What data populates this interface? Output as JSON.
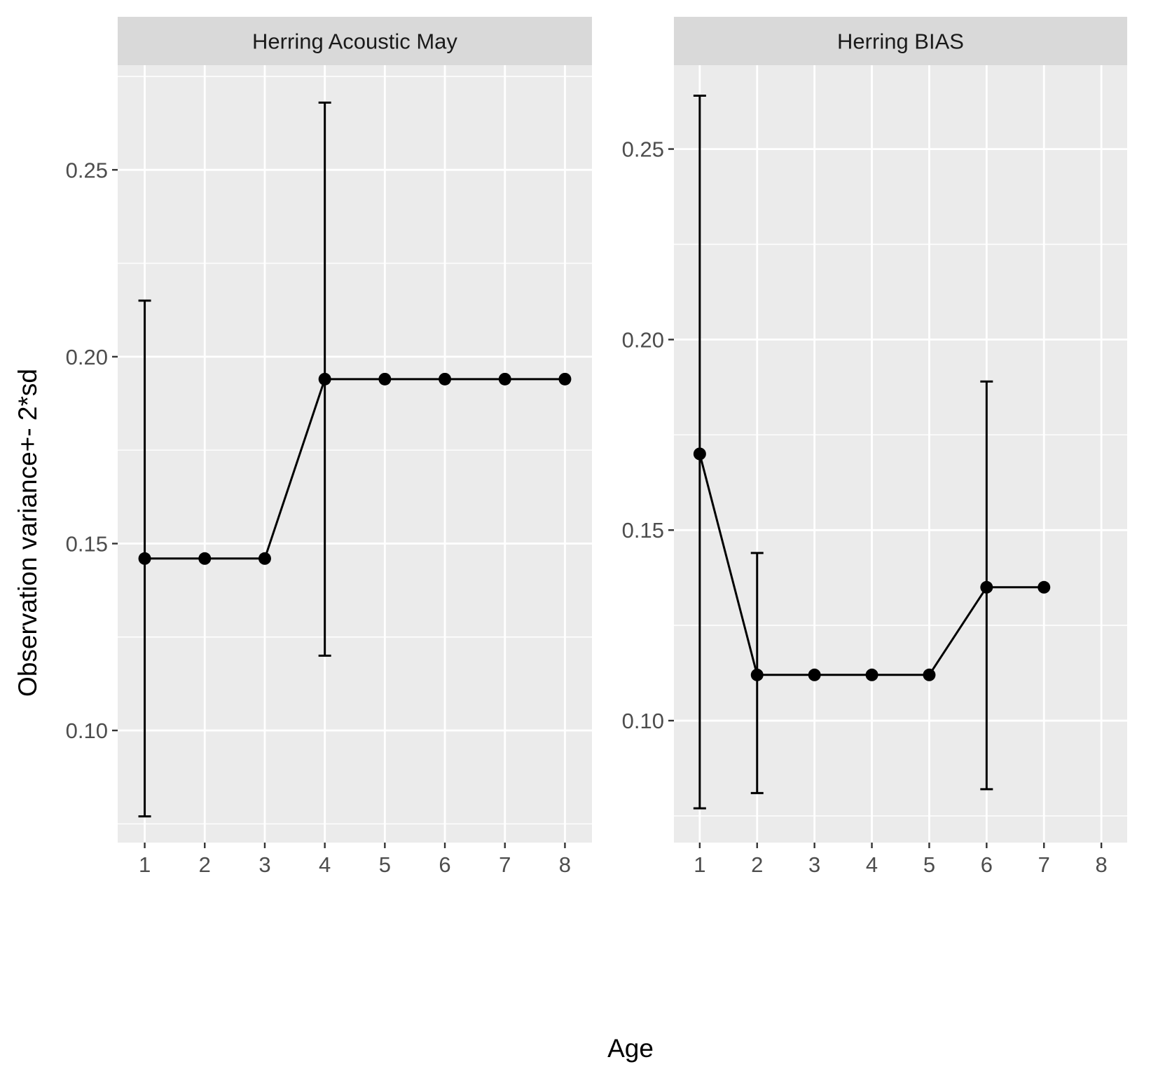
{
  "chart_data": {
    "type": "line",
    "xlabel": "Age",
    "ylabel": "Observation variance+- 2*sd",
    "grid": true,
    "legend": "none",
    "colors": {
      "panel_bg": "#ebebeb",
      "strip_bg": "#d9d9d9",
      "grid": "#ffffff",
      "line": "#000000"
    },
    "panels": [
      {
        "title": "Herring Acoustic May",
        "xlim": [
          0.55,
          8.45
        ],
        "ylim": [
          0.07,
          0.278
        ],
        "x_ticks": [
          1,
          2,
          3,
          4,
          5,
          6,
          7,
          8
        ],
        "y_ticks": [
          0.1,
          0.15,
          0.2,
          0.25
        ],
        "y_tick_labels": [
          "0.10",
          "0.15",
          "0.20",
          "0.25"
        ],
        "x": [
          1,
          2,
          3,
          4,
          5,
          6,
          7,
          8
        ],
        "y": [
          0.146,
          0.146,
          0.146,
          0.194,
          0.194,
          0.194,
          0.194,
          0.194
        ],
        "errorbars": [
          {
            "x": 1,
            "low": 0.077,
            "high": 0.215
          },
          {
            "x": 4,
            "low": 0.12,
            "high": 0.268
          }
        ]
      },
      {
        "title": "Herring BIAS",
        "xlim": [
          0.55,
          8.45
        ],
        "ylim": [
          0.068,
          0.272
        ],
        "x_ticks": [
          1,
          2,
          3,
          4,
          5,
          6,
          7,
          8
        ],
        "y_ticks": [
          0.1,
          0.15,
          0.2,
          0.25
        ],
        "y_tick_labels": [
          "0.10",
          "0.15",
          "0.20",
          "0.25"
        ],
        "x": [
          1,
          2,
          3,
          4,
          5,
          6,
          7
        ],
        "y": [
          0.17,
          0.112,
          0.112,
          0.112,
          0.112,
          0.135,
          0.135
        ],
        "errorbars": [
          {
            "x": 1,
            "low": 0.077,
            "high": 0.264
          },
          {
            "x": 2,
            "low": 0.081,
            "high": 0.144
          },
          {
            "x": 6,
            "low": 0.082,
            "high": 0.189
          }
        ]
      }
    ]
  }
}
